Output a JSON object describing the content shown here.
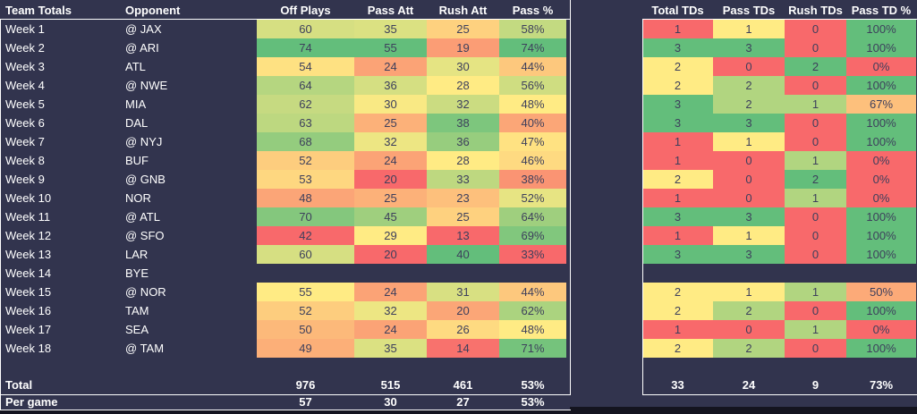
{
  "app": {
    "background": "#32344E",
    "cell_text": "#3D3F5C",
    "label_text": "#FFFFFF",
    "border_color": "#FFFFFF",
    "bottom_strip": "#14141F"
  },
  "color_scale": {
    "min": "#F8696B",
    "mid": "#FFEB84",
    "max": "#63BE7B"
  },
  "left_table": {
    "headers": [
      "Team Totals",
      "Opponent",
      "Off Plays",
      "Pass Att",
      "Rush Att",
      "Pass %"
    ],
    "total_label": "Total",
    "per_game_label": "Per game",
    "totals": [
      "976",
      "515",
      "461",
      "53%"
    ],
    "per_game": [
      "57",
      "30",
      "27",
      "53%"
    ]
  },
  "right_table": {
    "headers": [
      "Total TDs",
      "Pass TDs",
      "Rush TDs",
      "Pass TD %"
    ],
    "totals": [
      "33",
      "24",
      "9",
      "73%"
    ]
  },
  "weeks": [
    {
      "label": "Week 1",
      "opponent": "@ JAX",
      "off_plays": 60,
      "pass_att": 35,
      "rush_att": 25,
      "pass_pct": 58,
      "total_tds": 1,
      "pass_tds": 1,
      "rush_tds": 0,
      "pass_td_pct": 100
    },
    {
      "label": "Week 2",
      "opponent": "@ ARI",
      "off_plays": 74,
      "pass_att": 55,
      "rush_att": 19,
      "pass_pct": 74,
      "total_tds": 3,
      "pass_tds": 3,
      "rush_tds": 0,
      "pass_td_pct": 100
    },
    {
      "label": "Week 3",
      "opponent": "ATL",
      "off_plays": 54,
      "pass_att": 24,
      "rush_att": 30,
      "pass_pct": 44,
      "total_tds": 2,
      "pass_tds": 0,
      "rush_tds": 2,
      "pass_td_pct": 0
    },
    {
      "label": "Week 4",
      "opponent": "@ NWE",
      "off_plays": 64,
      "pass_att": 36,
      "rush_att": 28,
      "pass_pct": 56,
      "total_tds": 2,
      "pass_tds": 2,
      "rush_tds": 0,
      "pass_td_pct": 100
    },
    {
      "label": "Week 5",
      "opponent": "MIA",
      "off_plays": 62,
      "pass_att": 30,
      "rush_att": 32,
      "pass_pct": 48,
      "total_tds": 3,
      "pass_tds": 2,
      "rush_tds": 1,
      "pass_td_pct": 67
    },
    {
      "label": "Week 6",
      "opponent": "DAL",
      "off_plays": 63,
      "pass_att": 25,
      "rush_att": 38,
      "pass_pct": 40,
      "total_tds": 3,
      "pass_tds": 3,
      "rush_tds": 0,
      "pass_td_pct": 100
    },
    {
      "label": "Week 7",
      "opponent": "@ NYJ",
      "off_plays": 68,
      "pass_att": 32,
      "rush_att": 36,
      "pass_pct": 47,
      "total_tds": 1,
      "pass_tds": 1,
      "rush_tds": 0,
      "pass_td_pct": 100
    },
    {
      "label": "Week 8",
      "opponent": "BUF",
      "off_plays": 52,
      "pass_att": 24,
      "rush_att": 28,
      "pass_pct": 46,
      "total_tds": 1,
      "pass_tds": 0,
      "rush_tds": 1,
      "pass_td_pct": 0
    },
    {
      "label": "Week 9",
      "opponent": "@ GNB",
      "off_plays": 53,
      "pass_att": 20,
      "rush_att": 33,
      "pass_pct": 38,
      "total_tds": 2,
      "pass_tds": 0,
      "rush_tds": 2,
      "pass_td_pct": 0
    },
    {
      "label": "Week 10",
      "opponent": "NOR",
      "off_plays": 48,
      "pass_att": 25,
      "rush_att": 23,
      "pass_pct": 52,
      "total_tds": 1,
      "pass_tds": 0,
      "rush_tds": 1,
      "pass_td_pct": 0
    },
    {
      "label": "Week 11",
      "opponent": "@ ATL",
      "off_plays": 70,
      "pass_att": 45,
      "rush_att": 25,
      "pass_pct": 64,
      "total_tds": 3,
      "pass_tds": 3,
      "rush_tds": 0,
      "pass_td_pct": 100
    },
    {
      "label": "Week 12",
      "opponent": "@ SFO",
      "off_plays": 42,
      "pass_att": 29,
      "rush_att": 13,
      "pass_pct": 69,
      "total_tds": 1,
      "pass_tds": 1,
      "rush_tds": 0,
      "pass_td_pct": 100
    },
    {
      "label": "Week 13",
      "opponent": "LAR",
      "off_plays": 60,
      "pass_att": 20,
      "rush_att": 40,
      "pass_pct": 33,
      "total_tds": 3,
      "pass_tds": 3,
      "rush_tds": 0,
      "pass_td_pct": 100
    },
    {
      "label": "Week 14",
      "opponent": "BYE",
      "off_plays": null,
      "pass_att": null,
      "rush_att": null,
      "pass_pct": null,
      "total_tds": null,
      "pass_tds": null,
      "rush_tds": null,
      "pass_td_pct": null
    },
    {
      "label": "Week 15",
      "opponent": "@ NOR",
      "off_plays": 55,
      "pass_att": 24,
      "rush_att": 31,
      "pass_pct": 44,
      "total_tds": 2,
      "pass_tds": 1,
      "rush_tds": 1,
      "pass_td_pct": 50
    },
    {
      "label": "Week 16",
      "opponent": "TAM",
      "off_plays": 52,
      "pass_att": 32,
      "rush_att": 20,
      "pass_pct": 62,
      "total_tds": 2,
      "pass_tds": 2,
      "rush_tds": 0,
      "pass_td_pct": 100
    },
    {
      "label": "Week 17",
      "opponent": "SEA",
      "off_plays": 50,
      "pass_att": 24,
      "rush_att": 26,
      "pass_pct": 48,
      "total_tds": 1,
      "pass_tds": 0,
      "rush_tds": 1,
      "pass_td_pct": 0
    },
    {
      "label": "Week 18",
      "opponent": "@ TAM",
      "off_plays": 49,
      "pass_att": 35,
      "rush_att": 14,
      "pass_pct": 71,
      "total_tds": 2,
      "pass_tds": 2,
      "rush_tds": 0,
      "pass_td_pct": 100
    }
  ]
}
